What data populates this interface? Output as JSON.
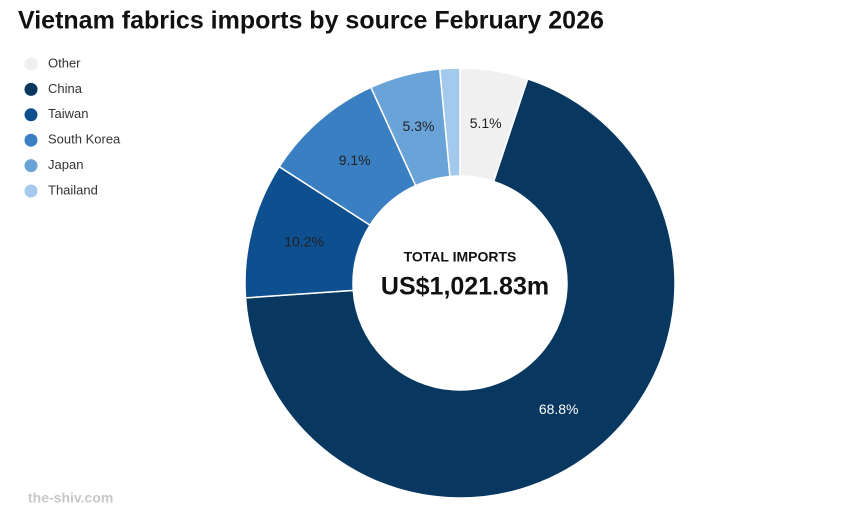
{
  "chart_data": {
    "type": "donut",
    "title": "Vietnam fabrics imports by source February 2026",
    "center_label": "TOTAL IMPORTS",
    "center_value": "US$1,021.83m",
    "categories": [
      "Other",
      "China",
      "Taiwan",
      "South Korea",
      "Japan",
      "Thailand"
    ],
    "values": [
      5.1,
      68.8,
      10.2,
      9.1,
      5.3,
      1.5
    ],
    "value_labels": [
      "5.1%",
      "68.8%",
      "10.2%",
      "9.1%",
      "5.3%",
      null
    ],
    "colors": [
      "#f0f0f0",
      "#08375f",
      "#0d4f8f",
      "#3a7fc1",
      "#6aa3d8",
      "#a3c9ec"
    ],
    "legend": "top-left",
    "source": "the-shiv.com"
  }
}
